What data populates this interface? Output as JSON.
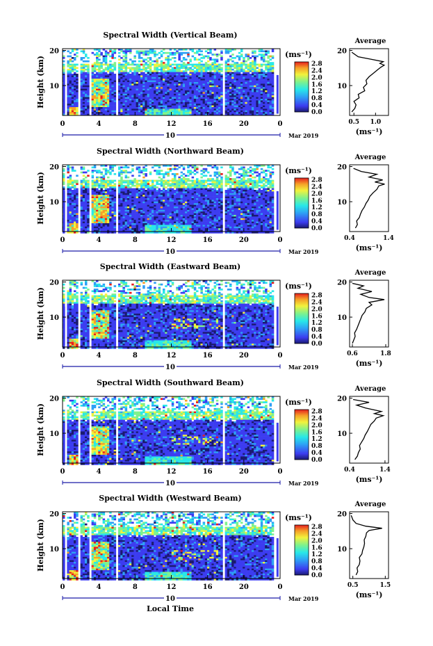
{
  "chart_data": {
    "type": "heatmap",
    "shared": {
      "xlabel": "Local Time",
      "xticks": [
        "0",
        "4",
        "8",
        "12",
        "16",
        "20",
        "0"
      ],
      "xlim": [
        0,
        24
      ],
      "date_day": "10",
      "date_label": "Mar 2019",
      "ylabel": "Height (km)",
      "yticks": [
        "20",
        "10"
      ],
      "ylim": [
        1.5,
        20.5
      ],
      "colorbar_unit": "(ms⁻¹)",
      "colorbar_ticks": [
        "2.8",
        "2.4",
        "2.0",
        "1.6",
        "1.2",
        "0.8",
        "0.4",
        "0.0"
      ],
      "colorbar_range": [
        0.0,
        2.9
      ],
      "colors": [
        "#1a1a70",
        "#3c3cf0",
        "#2ea0f5",
        "#28e8e8",
        "#7ff28c",
        "#f2f23c",
        "#f5a028",
        "#e61e1e"
      ],
      "avg_title": "Average",
      "avg_unit": "(ms⁻¹)",
      "data_gaps_hours": [
        [
          0.2,
          0.35
        ],
        [
          1.6,
          1.85
        ],
        [
          2.7,
          3.0
        ],
        [
          5.8,
          6.05
        ],
        [
          17.6,
          17.8
        ],
        [
          23.2,
          24.0
        ]
      ]
    },
    "panels": [
      {
        "title": "Spectral Width (Vertical Beam)",
        "avg_xticks": [
          "0.5",
          "1.0"
        ],
        "avg_xlim": [
          0.4,
          1.3
        ],
        "avg_profile": [
          [
            0.45,
            2.5
          ],
          [
            0.52,
            3.5
          ],
          [
            0.55,
            4.5
          ],
          [
            0.5,
            5.5
          ],
          [
            0.62,
            6.5
          ],
          [
            0.6,
            7.5
          ],
          [
            0.75,
            8.5
          ],
          [
            0.72,
            9.5
          ],
          [
            0.8,
            10.5
          ],
          [
            0.78,
            11.5
          ],
          [
            0.85,
            12.5
          ],
          [
            0.95,
            13.5
          ],
          [
            1.05,
            14.5
          ],
          [
            1.12,
            15.2
          ],
          [
            1.2,
            15.8
          ],
          [
            1.1,
            16.3
          ],
          [
            1.18,
            16.8
          ],
          [
            0.9,
            17.5
          ],
          [
            0.6,
            18.2
          ],
          [
            0.45,
            19.5
          ]
        ]
      },
      {
        "title": "Spectral Width (Northward Beam)",
        "avg_xticks": [
          "0.4",
          "1.4"
        ],
        "avg_xlim": [
          0.4,
          1.4
        ],
        "avg_profile": [
          [
            0.55,
            2.5
          ],
          [
            0.6,
            3.5
          ],
          [
            0.58,
            4.5
          ],
          [
            0.65,
            5.5
          ],
          [
            0.68,
            6.5
          ],
          [
            0.72,
            7.5
          ],
          [
            0.78,
            8.5
          ],
          [
            0.82,
            9.5
          ],
          [
            0.88,
            10.5
          ],
          [
            0.92,
            11.5
          ],
          [
            1.0,
            12.5
          ],
          [
            1.1,
            13.5
          ],
          [
            1.15,
            14.5
          ],
          [
            1.3,
            15.0
          ],
          [
            1.05,
            15.6
          ],
          [
            1.25,
            16.2
          ],
          [
            0.9,
            17.0
          ],
          [
            1.1,
            17.8
          ],
          [
            0.7,
            18.6
          ],
          [
            0.5,
            19.5
          ]
        ]
      },
      {
        "title": "Spectral Width (Eastward Beam)",
        "avg_xticks": [
          "0.6",
          "1.8"
        ],
        "avg_xlim": [
          0.5,
          1.9
        ],
        "avg_profile": [
          [
            0.6,
            2.5
          ],
          [
            0.65,
            3.5
          ],
          [
            0.7,
            4.5
          ],
          [
            0.68,
            5.5
          ],
          [
            0.75,
            6.5
          ],
          [
            0.8,
            7.5
          ],
          [
            0.85,
            8.5
          ],
          [
            0.9,
            9.5
          ],
          [
            0.95,
            10.5
          ],
          [
            1.05,
            11.5
          ],
          [
            1.1,
            12.5
          ],
          [
            1.3,
            13.5
          ],
          [
            1.2,
            14.2
          ],
          [
            1.75,
            15.0
          ],
          [
            1.2,
            15.6
          ],
          [
            0.9,
            16.5
          ],
          [
            1.3,
            17.3
          ],
          [
            0.8,
            18.2
          ],
          [
            1.0,
            18.9
          ],
          [
            0.6,
            19.6
          ]
        ]
      },
      {
        "title": "Spectral Width (Southward Beam)",
        "avg_xticks": [
          "0.4",
          "1.4"
        ],
        "avg_xlim": [
          0.4,
          1.5
        ],
        "avg_profile": [
          [
            0.55,
            2.5
          ],
          [
            0.62,
            3.5
          ],
          [
            0.65,
            4.5
          ],
          [
            0.7,
            5.5
          ],
          [
            0.68,
            6.5
          ],
          [
            0.74,
            7.5
          ],
          [
            0.8,
            8.5
          ],
          [
            0.84,
            9.5
          ],
          [
            0.9,
            10.5
          ],
          [
            0.95,
            11.5
          ],
          [
            1.0,
            12.5
          ],
          [
            1.1,
            13.5
          ],
          [
            1.15,
            14.3
          ],
          [
            1.35,
            15.0
          ],
          [
            1.1,
            15.6
          ],
          [
            1.3,
            16.2
          ],
          [
            0.85,
            17.2
          ],
          [
            0.6,
            18.0
          ],
          [
            0.95,
            18.8
          ],
          [
            0.5,
            19.6
          ]
        ]
      },
      {
        "title": "Spectral Width (Westward Beam)",
        "avg_xticks": [
          "0.5",
          "1.5"
        ],
        "avg_xlim": [
          0.4,
          1.6
        ],
        "avg_profile": [
          [
            0.6,
            2.5
          ],
          [
            0.65,
            3.5
          ],
          [
            0.63,
            4.5
          ],
          [
            0.7,
            5.5
          ],
          [
            0.72,
            6.5
          ],
          [
            0.7,
            7.5
          ],
          [
            0.78,
            8.5
          ],
          [
            0.8,
            9.5
          ],
          [
            0.84,
            10.5
          ],
          [
            0.86,
            11.5
          ],
          [
            0.85,
            12.5
          ],
          [
            0.9,
            13.5
          ],
          [
            0.92,
            14.5
          ],
          [
            1.0,
            15.2
          ],
          [
            1.4,
            15.8
          ],
          [
            0.9,
            16.4
          ],
          [
            0.6,
            17.2
          ],
          [
            0.5,
            18.2
          ],
          [
            0.45,
            19.5
          ]
        ]
      }
    ]
  }
}
